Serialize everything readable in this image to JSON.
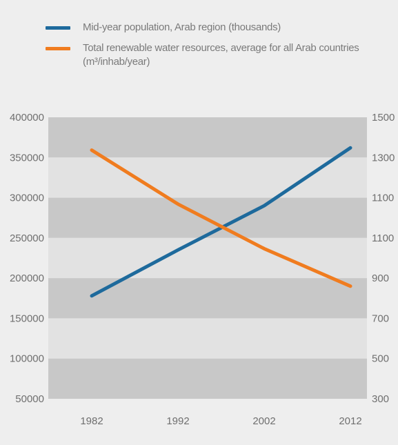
{
  "legend": {
    "series1_label": "Mid-year population, Arab region (thousands)",
    "series2_label": "Total renewable water resources, average for all Arab countries (m³/inhab/year)"
  },
  "colors": {
    "population": "#1e6a9c",
    "water": "#f07c1f",
    "band_dark": "#c8c8c8",
    "band_light": "#e2e2e2",
    "tick_text": "#6f6f6f"
  },
  "chart_data": {
    "type": "line",
    "title": "",
    "x": [
      "1982",
      "1992",
      "2002",
      "2012"
    ],
    "series": [
      {
        "name": "Mid-year population, Arab region (thousands)",
        "axis": "left",
        "values": [
          178000,
          235000,
          290000,
          362000
        ]
      },
      {
        "name": "Total renewable water resources, average for all Arab countries (m³/inhab/year)",
        "axis": "right",
        "values": [
          1360,
          1130,
          940,
          780
        ]
      }
    ],
    "y_left": {
      "ticks": [
        "400000",
        "350000",
        "300000",
        "250000",
        "200000",
        "150000",
        "100000",
        "50000"
      ],
      "ylim": [
        50000,
        400000
      ]
    },
    "y_right": {
      "ticks": [
        "1500",
        "1300",
        "1100",
        "1100",
        "900",
        "700",
        "500",
        "300"
      ],
      "ylim": [
        300,
        1500
      ]
    },
    "grid": "alternating horizontal bands",
    "legend_position": "top"
  }
}
